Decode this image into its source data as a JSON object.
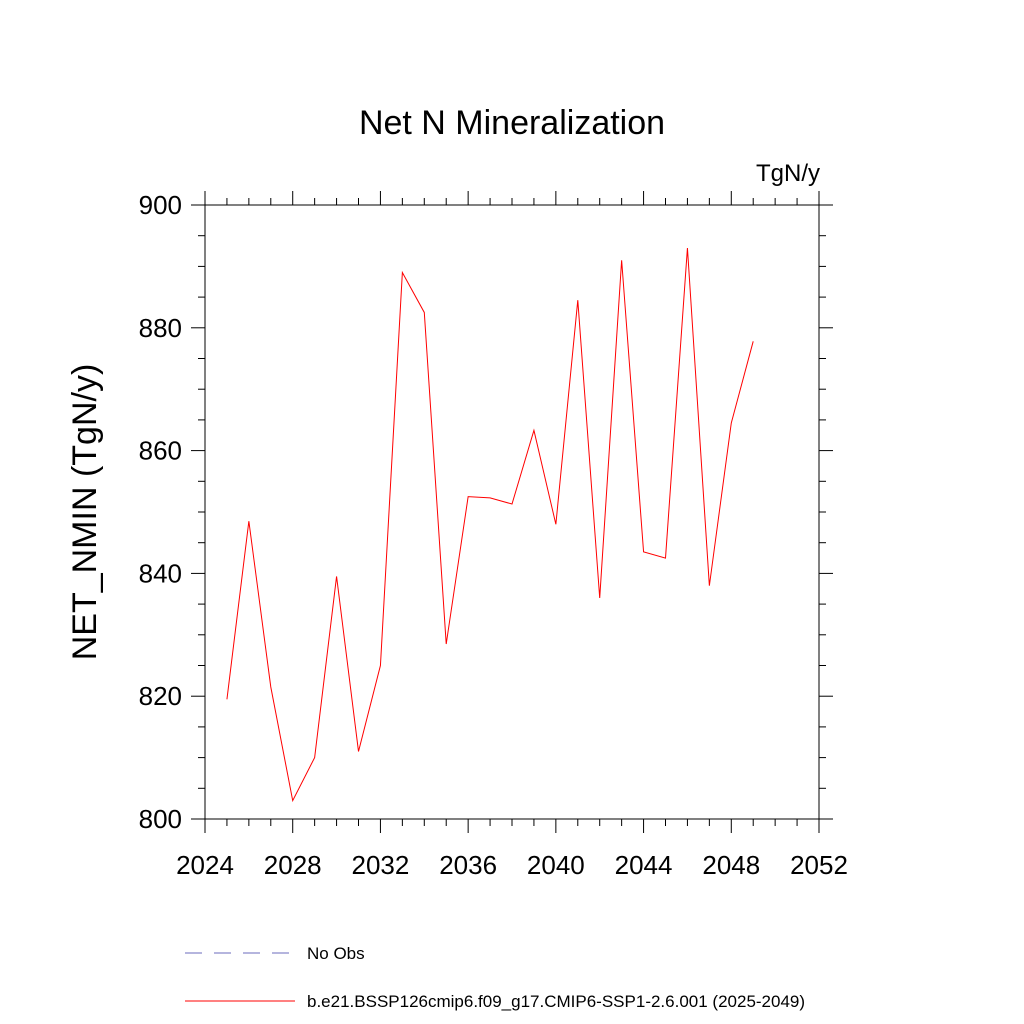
{
  "chart_data": {
    "type": "line",
    "title": "Net N Mineralization",
    "units_label": "TgN/y",
    "xlabel": "",
    "ylabel": "NET_NMIN  (TgN/y)",
    "xlim": [
      2024,
      2052
    ],
    "ylim": [
      800,
      900
    ],
    "x_ticks": [
      2024,
      2028,
      2032,
      2036,
      2040,
      2044,
      2048,
      2052
    ],
    "x_tick_labels": [
      "2024",
      "2028",
      "2032",
      "2036",
      "2040",
      "2044",
      "2048",
      "2052"
    ],
    "y_ticks": [
      800,
      820,
      840,
      860,
      880,
      900
    ],
    "y_tick_labels": [
      "800",
      "820",
      "840",
      "860",
      "880",
      "900"
    ],
    "grid": false,
    "series": [
      {
        "name": "b.e21.BSSP126cmip6.f09_g17.CMIP6-SSP1-2.6.001 (2025-2049)",
        "color": "#ff0000",
        "style": "solid",
        "x": [
          2025,
          2026,
          2027,
          2028,
          2029,
          2030,
          2031,
          2032,
          2033,
          2034,
          2035,
          2036,
          2037,
          2038,
          2039,
          2040,
          2041,
          2042,
          2043,
          2044,
          2045,
          2046,
          2047,
          2048,
          2049
        ],
        "y": [
          819.5,
          848.5,
          821.5,
          803.0,
          810.0,
          839.5,
          811.0,
          825.0,
          889.0,
          882.5,
          828.5,
          852.5,
          852.3,
          851.3,
          863.3,
          848.0,
          884.5,
          836.0,
          891.0,
          843.5,
          842.5,
          893.0,
          838.0,
          864.5,
          877.8
        ]
      }
    ],
    "legend": {
      "placement": "bottom",
      "entries": [
        {
          "label": "No Obs",
          "color": "#6b6bbd",
          "style": "dashed"
        },
        {
          "label": "b.e21.BSSP126cmip6.f09_g17.CMIP6-SSP1-2.6.001 (2025-2049)",
          "color": "#ff0000",
          "style": "solid"
        }
      ]
    }
  }
}
